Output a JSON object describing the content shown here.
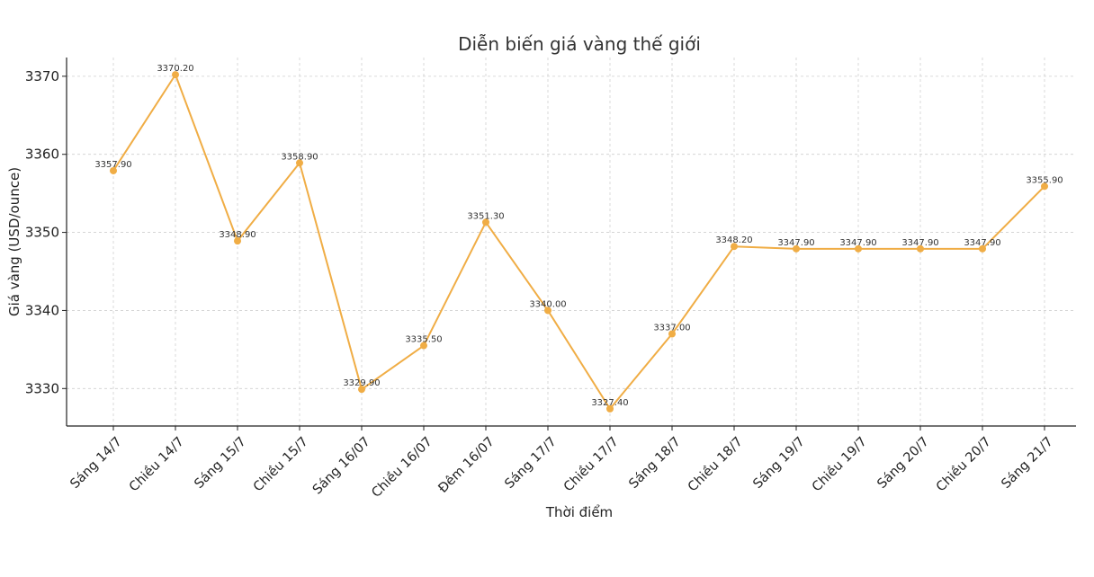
{
  "chart_data": {
    "type": "line",
    "title": "Diễn biến giá vàng thế giới",
    "xlabel": "Thời điểm",
    "ylabel": "Giá vàng (USD/ounce)",
    "categories": [
      "Sáng 14/7",
      "Chiều 14/7",
      "Sáng 15/7",
      "Chiều 15/7",
      "Sáng 16/07",
      "Chiều 16/07",
      "Đêm 16/07",
      "Sáng 17/7",
      "Chiều 17/7",
      "Sáng 18/7",
      "Chiều 18/7",
      "Sáng 19/7",
      "Chiều 19/7",
      "Sáng 20/7",
      "Chiều 20/7",
      "Sáng 21/7"
    ],
    "series": [
      {
        "values": [
          3357.9,
          3370.2,
          3348.9,
          3358.9,
          3329.9,
          3335.5,
          3351.3,
          3340.0,
          3327.4,
          3337.0,
          3348.2,
          3347.9,
          3347.9,
          3347.9,
          3347.9,
          3355.9
        ],
        "labels": [
          "3357.90",
          "3370.20",
          "3348.90",
          "3358.90",
          "3329.90",
          "3335.50",
          "3351.30",
          "3340.00",
          "3327.40",
          "3337.00",
          "3348.20",
          "3347.90",
          "3347.90",
          "3347.90",
          "3347.90",
          "3355.90"
        ],
        "color": "#F0AD45"
      }
    ],
    "yticks": [
      3330,
      3340,
      3350,
      3360,
      3370
    ],
    "ytick_labels": [
      "3330",
      "3340",
      "3350",
      "3360",
      "3370"
    ],
    "ylim": [
      3325.2,
      3372.4
    ],
    "grid": true,
    "legend": "none"
  }
}
